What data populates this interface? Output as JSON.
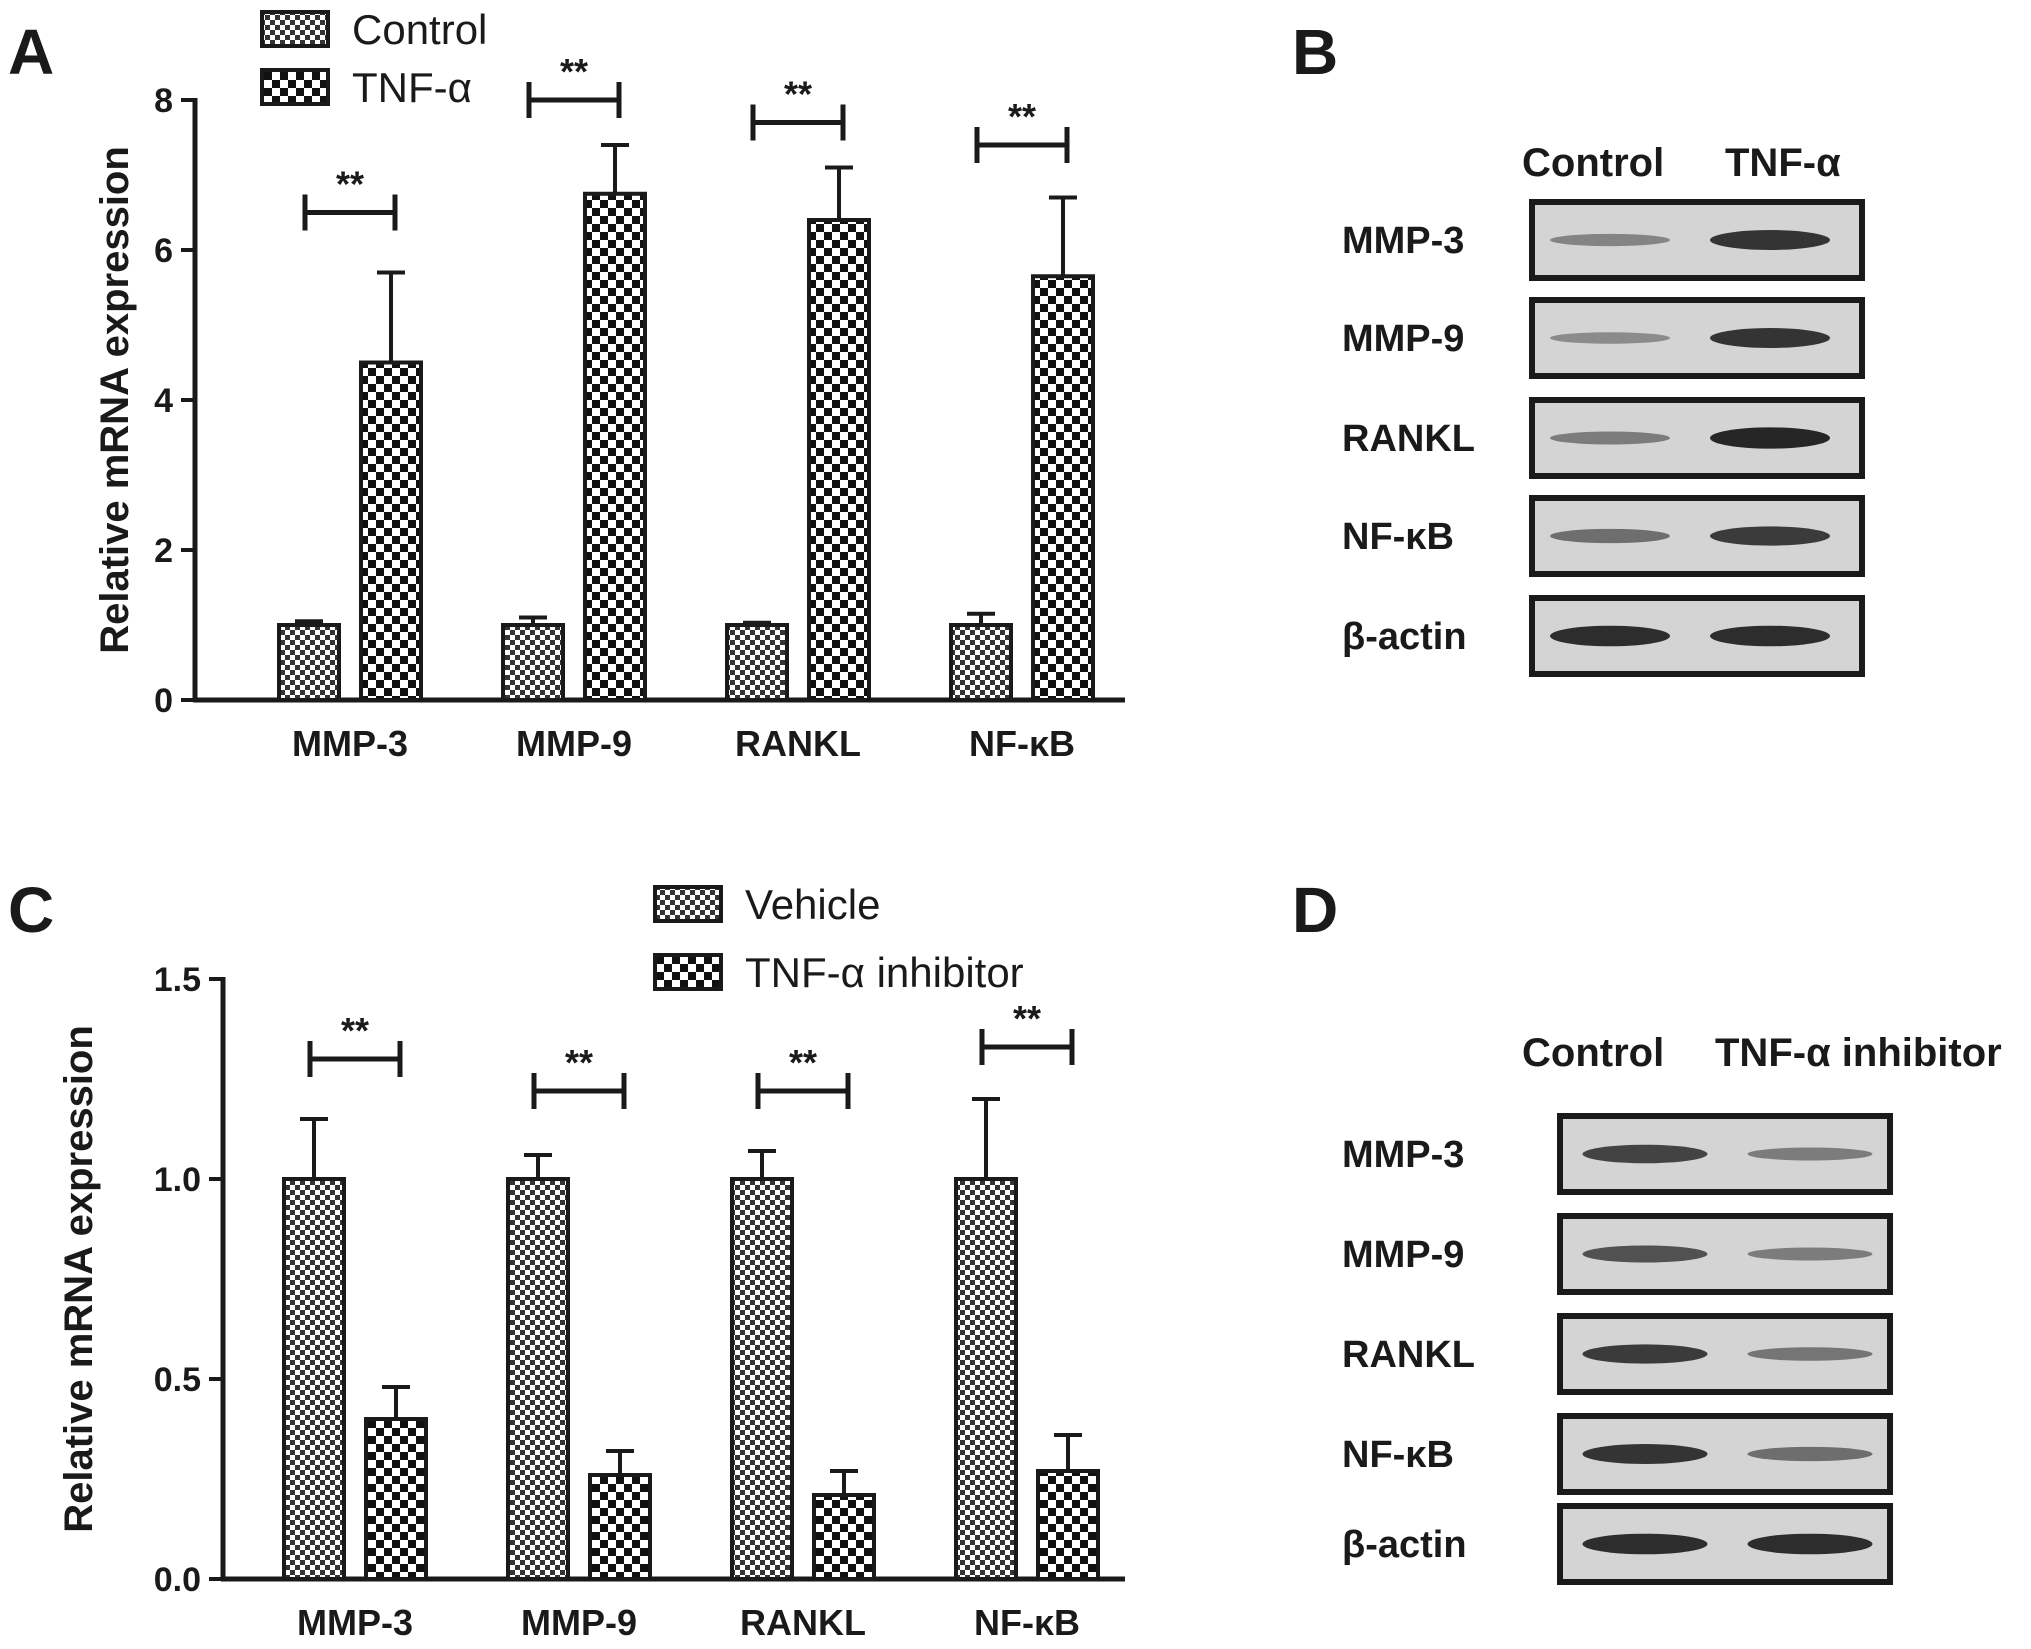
{
  "panels": {
    "A": {
      "letter": "A"
    },
    "B": {
      "letter": "B"
    },
    "C": {
      "letter": "C"
    },
    "D": {
      "letter": "D"
    }
  },
  "chart_data": [
    {
      "panel": "A",
      "type": "bar",
      "ylabel": "Relative mRNA expression",
      "ylim": [
        0,
        8
      ],
      "yticks": [
        0,
        2,
        4,
        6,
        8
      ],
      "categories": [
        "MMP-3",
        "MMP-9",
        "RANKL",
        "NF-κB"
      ],
      "series": [
        {
          "name": "Control",
          "values": [
            1.0,
            1.0,
            1.0,
            1.0
          ],
          "errors": [
            0.05,
            0.1,
            0.03,
            0.15
          ],
          "pattern": "fine-check"
        },
        {
          "name": "TNF-α",
          "values": [
            4.5,
            6.75,
            6.4,
            5.65
          ],
          "errors": [
            1.2,
            0.65,
            0.7,
            1.05
          ],
          "pattern": "coarse-check"
        }
      ],
      "significance": [
        "**",
        "**",
        "**",
        "**"
      ],
      "significance_bar_y": [
        6.5,
        8.0,
        7.7,
        7.4
      ],
      "legend_position": "top"
    },
    {
      "panel": "C",
      "type": "bar",
      "ylabel": "Relative mRNA expression",
      "ylim": [
        0,
        1.5
      ],
      "yticks": [
        "0.0",
        "0.5",
        "1.0",
        "1.5"
      ],
      "categories": [
        "MMP-3",
        "MMP-9",
        "RANKL",
        "NF-κB"
      ],
      "series": [
        {
          "name": "Vehicle",
          "values": [
            1.0,
            1.0,
            1.0,
            1.0
          ],
          "errors": [
            0.15,
            0.06,
            0.07,
            0.2
          ],
          "pattern": "fine-check"
        },
        {
          "name": "TNF-α  inhibitor",
          "values": [
            0.4,
            0.26,
            0.21,
            0.27
          ],
          "errors": [
            0.08,
            0.06,
            0.06,
            0.09
          ],
          "pattern": "coarse-check"
        }
      ],
      "significance": [
        "**",
        "**",
        "**",
        "**"
      ],
      "significance_bar_y": [
        1.3,
        1.22,
        1.22,
        1.33
      ],
      "legend_position": "top"
    }
  ],
  "blots": [
    {
      "panel": "B",
      "lanes": [
        "Control",
        "TNF-α"
      ],
      "rows": [
        {
          "label": "MMP-3",
          "intensities": [
            0.3,
            0.85
          ]
        },
        {
          "label": "MMP-9",
          "intensities": [
            0.25,
            0.85
          ]
        },
        {
          "label": "RANKL",
          "intensities": [
            0.35,
            0.95
          ]
        },
        {
          "label": "NF-κB",
          "intensities": [
            0.45,
            0.8
          ]
        },
        {
          "label": "β-actin",
          "intensities": [
            0.9,
            0.9
          ]
        }
      ]
    },
    {
      "panel": "D",
      "lanes": [
        "Control",
        "TNF-α  inhibitor"
      ],
      "rows": [
        {
          "label": "MMP-3",
          "intensities": [
            0.75,
            0.35
          ]
        },
        {
          "label": "MMP-9",
          "intensities": [
            0.65,
            0.35
          ]
        },
        {
          "label": "RANKL",
          "intensities": [
            0.8,
            0.4
          ]
        },
        {
          "label": "NF-κB",
          "intensities": [
            0.85,
            0.45
          ]
        },
        {
          "label": "β-actin",
          "intensities": [
            0.9,
            0.9
          ]
        }
      ]
    }
  ],
  "colors": {
    "ink": "#1a1a1a",
    "blot_bg": "#d4d4d4",
    "band": "#1e1e1e"
  }
}
